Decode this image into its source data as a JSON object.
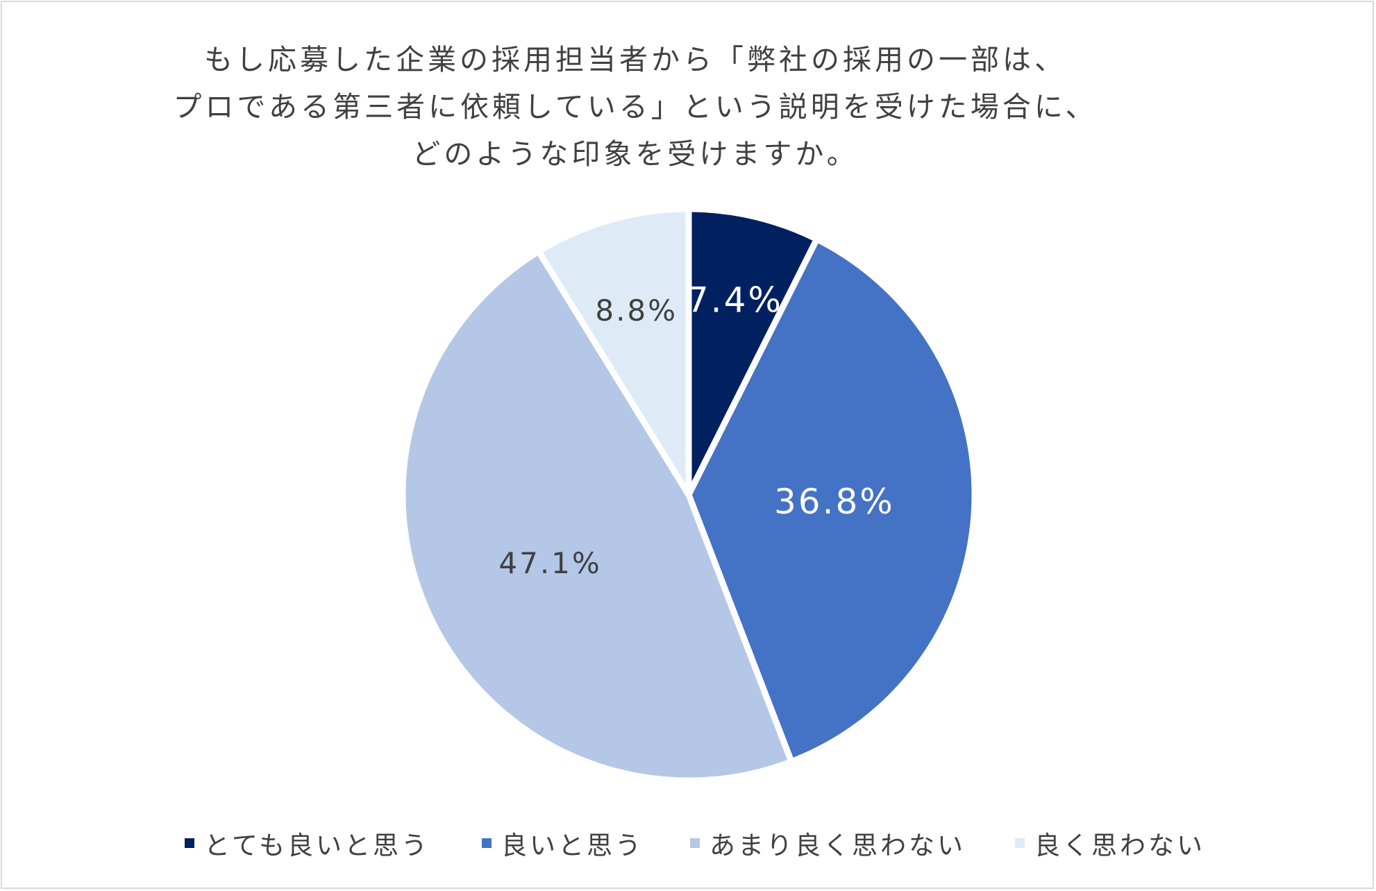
{
  "chart_data": {
    "type": "pie",
    "title_lines": [
      "もし応募した企業の採用担当者から「弊社の採用の一部は、",
      "プロである第三者に依頼している」という説明を受けた場合に、",
      "どのような印象を受けますか。"
    ],
    "slices": [
      {
        "label": "とても良いと思う",
        "value": 7.4,
        "display": "7.4%",
        "color": "#002060",
        "text_color": "#ffffff"
      },
      {
        "label": "良いと思う",
        "value": 36.8,
        "display": "36.8%",
        "color": "#4472c4",
        "text_color": "#ffffff"
      },
      {
        "label": "あまり良く思わない",
        "value": 47.1,
        "display": "47.1%",
        "color": "#b4c7e7",
        "text_color": "#404040"
      },
      {
        "label": "良く思わない",
        "value": 8.8,
        "display": "8.8%",
        "color": "#deebf7",
        "text_color": "#404040"
      }
    ],
    "start_angle": "12 o'clock",
    "direction": "clockwise",
    "legend_position": "bottom"
  }
}
